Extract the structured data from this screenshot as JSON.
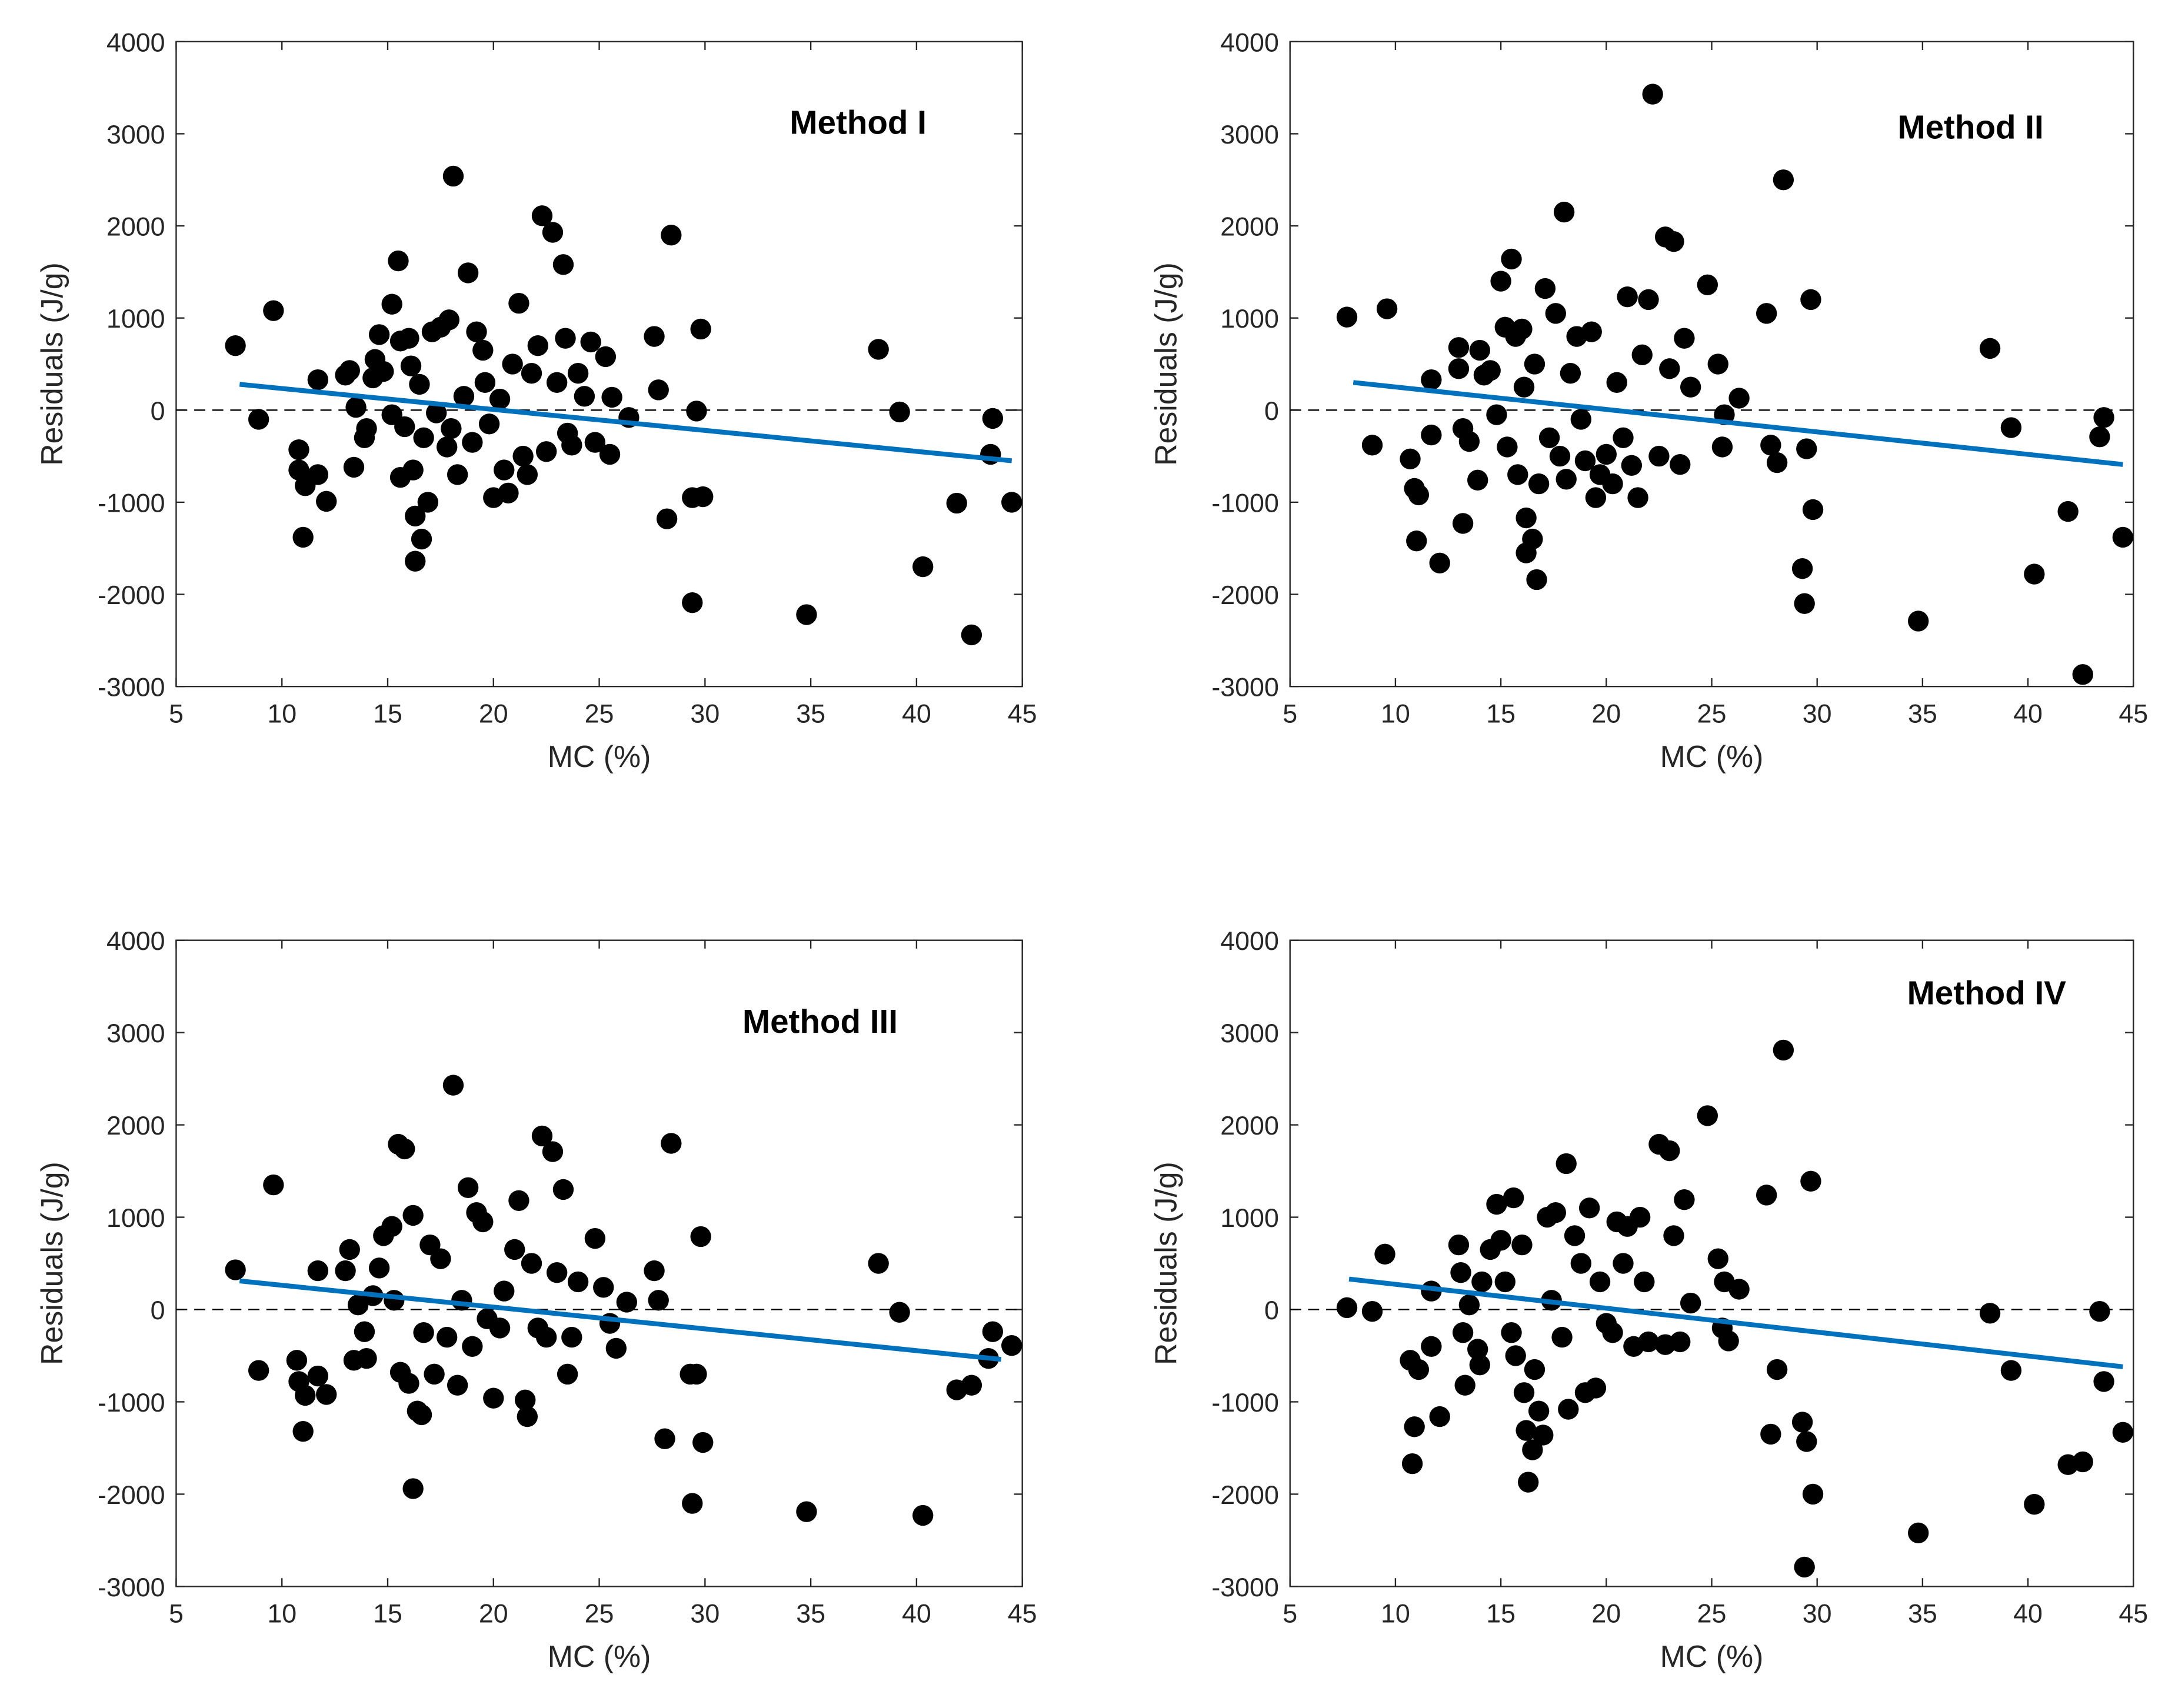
{
  "chart_data": [
    {
      "type": "scatter",
      "title": "Method I",
      "xlabel": "MC (%)",
      "ylabel": "Residuals (J/g)",
      "xlim": [
        5,
        45
      ],
      "xticks": [
        5,
        10,
        15,
        20,
        25,
        30,
        35,
        40,
        45
      ],
      "ylim": [
        -3000,
        4000
      ],
      "yticks": [
        -3000,
        -2000,
        -1000,
        0,
        1000,
        2000,
        3000,
        4000
      ],
      "hline": 0,
      "points": {
        "color": "#000000",
        "x": [
          7.8,
          8.9,
          9.6,
          10.8,
          10.8,
          11,
          11.1,
          11.7,
          11.7,
          12.1,
          13,
          13.2,
          13.4,
          13.5,
          13.9,
          14,
          14.3,
          14.4,
          14.6,
          14.8,
          15.2,
          15.2,
          15.5,
          15.6,
          15.6,
          15.8,
          16,
          16.1,
          16.2,
          16.3,
          16.3,
          16.6,
          16.5,
          16.7,
          16.9,
          17.1,
          17.3,
          17.5,
          17.8,
          17.9,
          18,
          18.1,
          18.3,
          18.6,
          18.8,
          19,
          19.2,
          19.5,
          19.6,
          19.8,
          20,
          20.3,
          20.5,
          20.7,
          20.9,
          21.2,
          21.4,
          21.6,
          21.8,
          22.1,
          22.3,
          22.5,
          22.8,
          23,
          23.3,
          23.4,
          23.5,
          23.7,
          24,
          24.3,
          24.6,
          24.8,
          25.3,
          25.5,
          25.6,
          26.4,
          27.6,
          27.8,
          28.2,
          28.4,
          29.4,
          29.4,
          29.6,
          29.8,
          29.9,
          34.8,
          38.2,
          39.2,
          40.3,
          41.9,
          42.6,
          43.5,
          43.6,
          44.5
        ],
        "y": [
          700,
          -100,
          1080,
          -430,
          -650,
          -1380,
          -820,
          330,
          -700,
          -990,
          380,
          430,
          -620,
          30,
          -300,
          -200,
          350,
          550,
          820,
          420,
          1150,
          -50,
          1620,
          750,
          -730,
          -180,
          780,
          480,
          -650,
          -1640,
          -1150,
          -1400,
          280,
          -300,
          -1000,
          850,
          -30,
          900,
          -400,
          980,
          -200,
          2540,
          -700,
          150,
          1490,
          -350,
          850,
          650,
          300,
          -150,
          -950,
          120,
          -650,
          -900,
          500,
          1160,
          -500,
          -700,
          400,
          700,
          2110,
          -450,
          1930,
          300,
          1580,
          780,
          -250,
          -380,
          400,
          150,
          740,
          -350,
          580,
          -480,
          140,
          -80,
          800,
          220,
          -1180,
          1900,
          -2090,
          -950,
          -10,
          880,
          -940,
          -2220,
          660,
          -20,
          -1700,
          -1010,
          -2440,
          -480,
          -90,
          -1000
        ]
      },
      "trend": {
        "color": "#0072bd",
        "x": [
          8,
          44.5
        ],
        "y": [
          280,
          -550
        ]
      }
    },
    {
      "type": "scatter",
      "title": "Method II",
      "xlabel": "MC (%)",
      "ylabel": "Residuals (J/g)",
      "xlim": [
        5,
        45
      ],
      "xticks": [
        5,
        10,
        15,
        20,
        25,
        30,
        35,
        40,
        45
      ],
      "ylim": [
        -3000,
        4000
      ],
      "yticks": [
        -3000,
        -2000,
        -1000,
        0,
        1000,
        2000,
        3000,
        4000
      ],
      "hline": 0,
      "points": {
        "color": "#000000",
        "x": [
          7.7,
          8.9,
          9.6,
          10.7,
          10.9,
          11,
          11.1,
          11.7,
          11.7,
          12.1,
          13,
          13,
          13.2,
          13.2,
          13.5,
          13.9,
          14,
          14.2,
          14.5,
          14.8,
          15,
          15.2,
          15.3,
          15.5,
          15.7,
          15.8,
          16,
          16.1,
          16.2,
          16.2,
          16.5,
          16.6,
          16.7,
          16.8,
          17.1,
          17.3,
          17.6,
          17.8,
          18,
          18.1,
          18.3,
          18.6,
          18.8,
          19,
          19.3,
          19.5,
          19.7,
          20,
          20.3,
          20.5,
          20.8,
          21,
          21.2,
          21.5,
          21.7,
          22,
          22.2,
          22.5,
          22.8,
          23,
          23.2,
          23.5,
          23.7,
          24,
          24.8,
          25.3,
          25.5,
          25.6,
          26.3,
          27.6,
          27.8,
          28.1,
          28.4,
          29.3,
          29.4,
          29.5,
          29.7,
          29.8,
          34.8,
          38.2,
          39.2,
          40.3,
          41.9,
          42.6,
          43.4,
          43.6,
          44.5
        ],
        "y": [
          1010,
          -380,
          1100,
          -530,
          -850,
          -1420,
          -920,
          330,
          -270,
          -1660,
          680,
          450,
          -200,
          -1230,
          -340,
          -760,
          650,
          380,
          430,
          -50,
          1400,
          900,
          -400,
          1640,
          800,
          -700,
          880,
          250,
          -1170,
          -1550,
          -1400,
          500,
          -1840,
          -800,
          1320,
          -300,
          1050,
          -500,
          2150,
          -750,
          400,
          800,
          -100,
          -550,
          850,
          -950,
          -700,
          -480,
          -800,
          300,
          -300,
          1230,
          -600,
          -950,
          600,
          1200,
          3430,
          -500,
          1880,
          450,
          1830,
          -590,
          780,
          250,
          1360,
          500,
          -400,
          -50,
          130,
          1050,
          -380,
          -570,
          2500,
          -1720,
          -2100,
          -420,
          1200,
          -1080,
          -2290,
          670,
          -190,
          -1780,
          -1100,
          -2870,
          -290,
          -80,
          -1380
        ]
      },
      "trend": {
        "color": "#0072bd",
        "x": [
          8,
          44.5
        ],
        "y": [
          300,
          -590
        ]
      }
    },
    {
      "type": "scatter",
      "title": "Method III",
      "xlabel": "MC (%)",
      "ylabel": "Residuals (J/g)",
      "xlim": [
        5,
        45
      ],
      "xticks": [
        5,
        10,
        15,
        20,
        25,
        30,
        35,
        40,
        45
      ],
      "ylim": [
        -3000,
        4000
      ],
      "yticks": [
        -3000,
        -2000,
        -1000,
        0,
        1000,
        2000,
        3000,
        4000
      ],
      "hline": 0,
      "points": {
        "color": "#000000",
        "x": [
          7.8,
          8.9,
          9.6,
          10.7,
          10.8,
          11,
          11.1,
          11.7,
          11.7,
          12.1,
          13,
          13.2,
          13.4,
          13.6,
          13.9,
          14,
          14.3,
          14.6,
          14.8,
          15.2,
          15.3,
          15.5,
          15.6,
          15.8,
          16,
          16.2,
          16.2,
          16.4,
          16.6,
          16.7,
          17,
          17.2,
          17.5,
          17.8,
          18.1,
          18.3,
          18.5,
          18.8,
          19,
          19.2,
          19.5,
          19.7,
          20,
          20.3,
          20.5,
          21,
          21.2,
          21.5,
          21.6,
          21.8,
          22.1,
          22.3,
          22.5,
          22.8,
          23,
          23.3,
          23.5,
          23.7,
          24,
          24.8,
          25.2,
          25.5,
          25.8,
          26.3,
          27.6,
          27.8,
          28.1,
          28.4,
          29.4,
          29.3,
          29.6,
          29.8,
          29.9,
          34.8,
          38.2,
          39.2,
          40.3,
          41.9,
          42.6,
          43.4,
          43.6,
          44.5
        ],
        "y": [
          430,
          -660,
          1350,
          -550,
          -780,
          -1320,
          -930,
          420,
          -720,
          -920,
          420,
          650,
          -550,
          50,
          -240,
          -530,
          150,
          450,
          800,
          900,
          100,
          1790,
          -680,
          1740,
          -800,
          1020,
          -1940,
          -1100,
          -1140,
          -250,
          700,
          -700,
          550,
          -300,
          2430,
          -820,
          100,
          1320,
          -400,
          1050,
          950,
          -100,
          -960,
          -200,
          200,
          650,
          1180,
          -980,
          -1160,
          500,
          -200,
          1880,
          -300,
          1710,
          400,
          1300,
          -700,
          -300,
          300,
          770,
          240,
          -150,
          -420,
          80,
          420,
          100,
          -1400,
          1800,
          -2100,
          -700,
          -700,
          790,
          -1440,
          -2190,
          500,
          -30,
          -2230,
          -870,
          -820,
          -530,
          -240,
          -390
        ]
      },
      "trend": {
        "color": "#0072bd",
        "x": [
          8,
          44
        ],
        "y": [
          310,
          -540
        ]
      }
    },
    {
      "type": "scatter",
      "title": "Method IV",
      "xlabel": "MC (%)",
      "ylabel": "Residuals (J/g)",
      "xlim": [
        5,
        45
      ],
      "xticks": [
        5,
        10,
        15,
        20,
        25,
        30,
        35,
        40,
        45
      ],
      "ylim": [
        -3000,
        4000
      ],
      "yticks": [
        -3000,
        -2000,
        -1000,
        0,
        1000,
        2000,
        3000,
        4000
      ],
      "hline": 0,
      "points": {
        "color": "#000000",
        "x": [
          7.7,
          8.9,
          9.5,
          10.7,
          10.8,
          10.9,
          11.1,
          11.7,
          11.7,
          12.1,
          13,
          13.1,
          13.2,
          13.3,
          13.5,
          13.9,
          14,
          14.1,
          14.5,
          14.8,
          15,
          15.2,
          15.5,
          15.6,
          15.7,
          16,
          16.1,
          16.2,
          16.3,
          16.5,
          16.6,
          16.8,
          17,
          17.2,
          17.4,
          17.6,
          17.9,
          18.1,
          18.2,
          18.5,
          18.8,
          19,
          19.2,
          19.5,
          19.7,
          20,
          20.3,
          20.5,
          20.8,
          21,
          21.3,
          21.6,
          21.8,
          22,
          22.5,
          22.8,
          23,
          23.2,
          23.5,
          23.7,
          24,
          24.8,
          25.3,
          25.5,
          25.6,
          25.8,
          26.3,
          27.6,
          27.8,
          28.1,
          28.4,
          29.3,
          29.4,
          29.5,
          29.7,
          29.8,
          34.8,
          38.2,
          39.2,
          40.3,
          41.9,
          42.6,
          43.4,
          43.6,
          44.5
        ],
        "y": [
          20,
          -20,
          600,
          -550,
          -1670,
          -1270,
          -650,
          200,
          -400,
          -1160,
          700,
          400,
          -250,
          -820,
          50,
          -430,
          -600,
          300,
          650,
          1140,
          750,
          300,
          -250,
          1210,
          -500,
          700,
          -900,
          -1310,
          -1870,
          -1520,
          -650,
          -1100,
          -1360,
          1000,
          100,
          1050,
          -300,
          1580,
          -1080,
          800,
          500,
          -900,
          1100,
          -850,
          300,
          -150,
          -250,
          950,
          500,
          900,
          -400,
          1000,
          300,
          -350,
          1790,
          -380,
          1720,
          800,
          -350,
          1190,
          70,
          2100,
          550,
          -200,
          300,
          -340,
          220,
          1240,
          -1350,
          -650,
          2810,
          -1220,
          -2790,
          -1430,
          1390,
          -2000,
          -2420,
          -40,
          -660,
          -2110,
          -1680,
          -1650,
          -20,
          -780,
          -1330
        ]
      },
      "trend": {
        "color": "#0072bd",
        "x": [
          7.8,
          44.5
        ],
        "y": [
          330,
          -620
        ]
      }
    }
  ]
}
